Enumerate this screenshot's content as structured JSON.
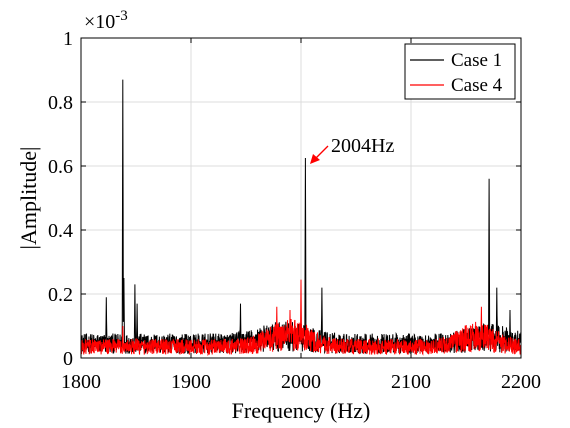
{
  "chart_data": {
    "type": "line",
    "xlabel": "Frequency (Hz)",
    "ylabel": "|Amplitude|",
    "y_multiplier_base": "×10",
    "y_multiplier_exp": "-3",
    "xlim": [
      1800,
      2200
    ],
    "ylim": [
      0,
      1
    ],
    "grid": true,
    "legend": "top-right",
    "x_ticks": [
      "1800",
      "1900",
      "2000",
      "2100",
      "2200"
    ],
    "y_ticks": [
      "0",
      "0.2",
      "0.4",
      "0.6",
      "0.8",
      "1"
    ],
    "series": [
      {
        "name": "Case 1",
        "color": "#000000",
        "noise_floor": 0.045,
        "peaks": [
          {
            "x": 1823,
            "y": 0.19
          },
          {
            "x": 1838,
            "y": 0.87
          },
          {
            "x": 1839,
            "y": 0.25
          },
          {
            "x": 1849,
            "y": 0.23
          },
          {
            "x": 1851,
            "y": 0.17
          },
          {
            "x": 1945,
            "y": 0.17
          },
          {
            "x": 2004,
            "y": 0.625
          },
          {
            "x": 2019,
            "y": 0.22
          },
          {
            "x": 2171,
            "y": 0.56
          },
          {
            "x": 2178,
            "y": 0.22
          },
          {
            "x": 2190,
            "y": 0.15
          }
        ]
      },
      {
        "name": "Case 4",
        "color": "#ff0000",
        "noise_floor": 0.035,
        "peaks": [
          {
            "x": 1838,
            "y": 0.1
          },
          {
            "x": 1978,
            "y": 0.16
          },
          {
            "x": 1990,
            "y": 0.15
          },
          {
            "x": 2000,
            "y": 0.245
          },
          {
            "x": 2164,
            "y": 0.16
          }
        ]
      }
    ],
    "annotations": [
      {
        "text": "2004Hz",
        "x": 2004,
        "y": 0.625
      }
    ]
  }
}
